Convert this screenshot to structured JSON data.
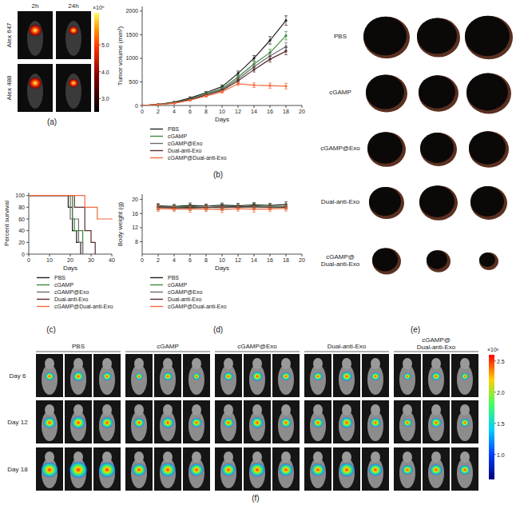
{
  "chart_data": [
    {
      "type": "image",
      "panel_label": "(a)",
      "columns": [
        "2h",
        "24h"
      ],
      "rows": [
        "Alex 647",
        "Alex 488"
      ],
      "colorbar": {
        "range": [
          2.5,
          6.2
        ],
        "ticks": [
          {
            "value": 3,
            "label": "3.0"
          },
          {
            "value": 4,
            "label": "4.0"
          },
          {
            "value": 5,
            "label": "5.0"
          }
        ],
        "exponent_label": "×10⁶"
      }
    },
    {
      "type": "line",
      "panel_label": "(b)",
      "xlabel": "Days",
      "ylabel": "Tumor volume (mm³)",
      "x": [
        0,
        2,
        4,
        6,
        8,
        10,
        12,
        14,
        16,
        18
      ],
      "xlim": [
        0,
        20
      ],
      "xticks": [
        0,
        2,
        4,
        6,
        8,
        10,
        12,
        14,
        16,
        18,
        20
      ],
      "ylim": [
        0,
        2100
      ],
      "yticks": [
        0,
        500,
        1000,
        1500,
        2000
      ],
      "legend": "bottom",
      "series": [
        {
          "name": "PBS",
          "color": "#222222",
          "marker": "circle",
          "values": [
            0,
            25,
            70,
            160,
            270,
            400,
            680,
            1000,
            1380,
            1800
          ],
          "errors": [
            0,
            5,
            10,
            20,
            25,
            35,
            50,
            60,
            80,
            100
          ]
        },
        {
          "name": "cGAMP",
          "color": "#3c8a3c",
          "marker": "circle",
          "values": [
            0,
            22,
            60,
            140,
            250,
            360,
            600,
            880,
            1120,
            1480
          ],
          "errors": [
            0,
            5,
            10,
            18,
            25,
            30,
            45,
            55,
            70,
            90
          ]
        },
        {
          "name": "cGAMP@Exo",
          "color": "#6e6e6e",
          "marker": "circle",
          "values": [
            0,
            20,
            55,
            130,
            230,
            340,
            560,
            820,
            1050,
            1250
          ],
          "errors": [
            0,
            4,
            9,
            16,
            22,
            30,
            40,
            50,
            65,
            80
          ]
        },
        {
          "name": "Dual-anti-Exo",
          "color": "#5a2e2e",
          "marker": "circle",
          "values": [
            0,
            20,
            55,
            125,
            220,
            320,
            520,
            760,
            980,
            1150
          ],
          "errors": [
            0,
            4,
            9,
            15,
            20,
            28,
            40,
            50,
            60,
            75
          ]
        },
        {
          "name": "cGAMP@Dual-anti-Exo",
          "color": "#f26a3d",
          "marker": "circle",
          "values": [
            0,
            18,
            45,
            110,
            200,
            290,
            460,
            430,
            420,
            410
          ],
          "errors": [
            0,
            4,
            8,
            14,
            20,
            25,
            35,
            50,
            55,
            60
          ]
        }
      ]
    },
    {
      "type": "step",
      "panel_label": "(c)",
      "xlabel": "Days",
      "ylabel": "Percent survival",
      "xlim": [
        0,
        40
      ],
      "xticks": [
        0,
        10,
        20,
        30,
        40
      ],
      "ylim": [
        0,
        105
      ],
      "yticks": [
        0,
        20,
        40,
        60,
        80,
        100
      ],
      "legend": "bottom",
      "series": [
        {
          "name": "PBS",
          "color": "#222222",
          "x": [
            0,
            19,
            21,
            23,
            25
          ],
          "values": [
            100,
            80,
            40,
            20,
            0
          ]
        },
        {
          "name": "cGAMP",
          "color": "#3c8a3c",
          "x": [
            0,
            21,
            22,
            26
          ],
          "values": [
            100,
            60,
            40,
            0
          ]
        },
        {
          "name": "cGAMP@Exo",
          "color": "#6e6e6e",
          "x": [
            0,
            20,
            24,
            26
          ],
          "values": [
            100,
            60,
            20,
            0
          ]
        },
        {
          "name": "Dual-anti-Exo",
          "color": "#5a2e2e",
          "x": [
            0,
            22,
            27,
            30,
            32
          ],
          "values": [
            100,
            80,
            40,
            20,
            0
          ]
        },
        {
          "name": "cGAMP@Dual-anti-Exo",
          "color": "#f26a3d",
          "x": [
            0,
            27,
            33,
            40
          ],
          "values": [
            100,
            80,
            60,
            60
          ]
        }
      ]
    },
    {
      "type": "line",
      "panel_label": "(d)",
      "xlabel": "Days",
      "ylabel": "Body weight (g)",
      "x": [
        2,
        4,
        6,
        8,
        10,
        12,
        14,
        16,
        18
      ],
      "xlim": [
        0,
        20
      ],
      "xticks": [
        0,
        2,
        4,
        6,
        8,
        10,
        12,
        14,
        16,
        18,
        20
      ],
      "ylim": [
        4.5,
        21.5
      ],
      "yticks": [
        8,
        12,
        16,
        20
      ],
      "legend": "bottom",
      "series": [
        {
          "name": "PBS",
          "color": "#222222",
          "marker": "circle",
          "values": [
            18.2,
            18.0,
            18.3,
            18.1,
            18.4,
            18.2,
            18.5,
            18.3,
            18.6
          ],
          "errors": [
            0.6,
            0.6,
            0.7,
            0.6,
            0.6,
            0.7,
            0.6,
            0.6,
            0.7
          ]
        },
        {
          "name": "cGAMP",
          "color": "#3c8a3c",
          "marker": "circle",
          "values": [
            17.8,
            17.9,
            18.0,
            17.7,
            18.1,
            17.9,
            18.2,
            18.0,
            18.1
          ],
          "errors": [
            0.5,
            0.6,
            0.6,
            0.5,
            0.6,
            0.6,
            0.7,
            0.6,
            0.6
          ]
        },
        {
          "name": "cGAMP@Exo",
          "color": "#6e6e6e",
          "marker": "circle",
          "values": [
            17.6,
            17.7,
            17.5,
            17.8,
            17.6,
            17.9,
            17.7,
            17.8,
            17.9
          ],
          "errors": [
            0.6,
            0.5,
            0.6,
            0.6,
            0.7,
            0.6,
            0.6,
            0.5,
            0.6
          ]
        },
        {
          "name": "Dual-anti-Exo",
          "color": "#5a2e2e",
          "marker": "circle",
          "values": [
            17.9,
            17.6,
            17.8,
            17.7,
            17.9,
            17.8,
            18.0,
            17.7,
            17.8
          ],
          "errors": [
            0.7,
            0.6,
            0.6,
            0.7,
            0.6,
            0.6,
            0.7,
            0.6,
            0.6
          ]
        },
        {
          "name": "cGAMP@Dual-anti-Exo",
          "color": "#f26a3d",
          "marker": "circle",
          "values": [
            17.4,
            17.3,
            17.2,
            17.3,
            17.1,
            17.4,
            17.2,
            17.3,
            17.5
          ],
          "errors": [
            0.8,
            0.7,
            0.8,
            0.7,
            0.8,
            0.7,
            0.8,
            0.7,
            0.8
          ]
        }
      ]
    },
    {
      "type": "image",
      "panel_label": "(e)",
      "rows": [
        "PBS",
        "cGAMP",
        "cGAMP@Exo",
        "Dual-anti-Exo",
        "cGAMP@\nDual-anti-Exo"
      ]
    },
    {
      "type": "image",
      "panel_label": "(f)",
      "columns": [
        "PBS",
        "cGAMP",
        "cGAMP@Exo",
        "Dual-anti-Exo",
        "cGAMP@\nDual-anti-Exo"
      ],
      "rows": [
        "Day 6",
        "Day 12",
        "Day 18"
      ],
      "colorbar": {
        "range": [
          0.6,
          2.6
        ],
        "ticks": [
          {
            "value": 1,
            "label": "1.0"
          },
          {
            "value": 1.5,
            "label": "1.5"
          },
          {
            "value": 2,
            "label": "2.0"
          },
          {
            "value": 2.5,
            "label": "2.5"
          }
        ],
        "exponent_label": "×10³"
      }
    }
  ]
}
